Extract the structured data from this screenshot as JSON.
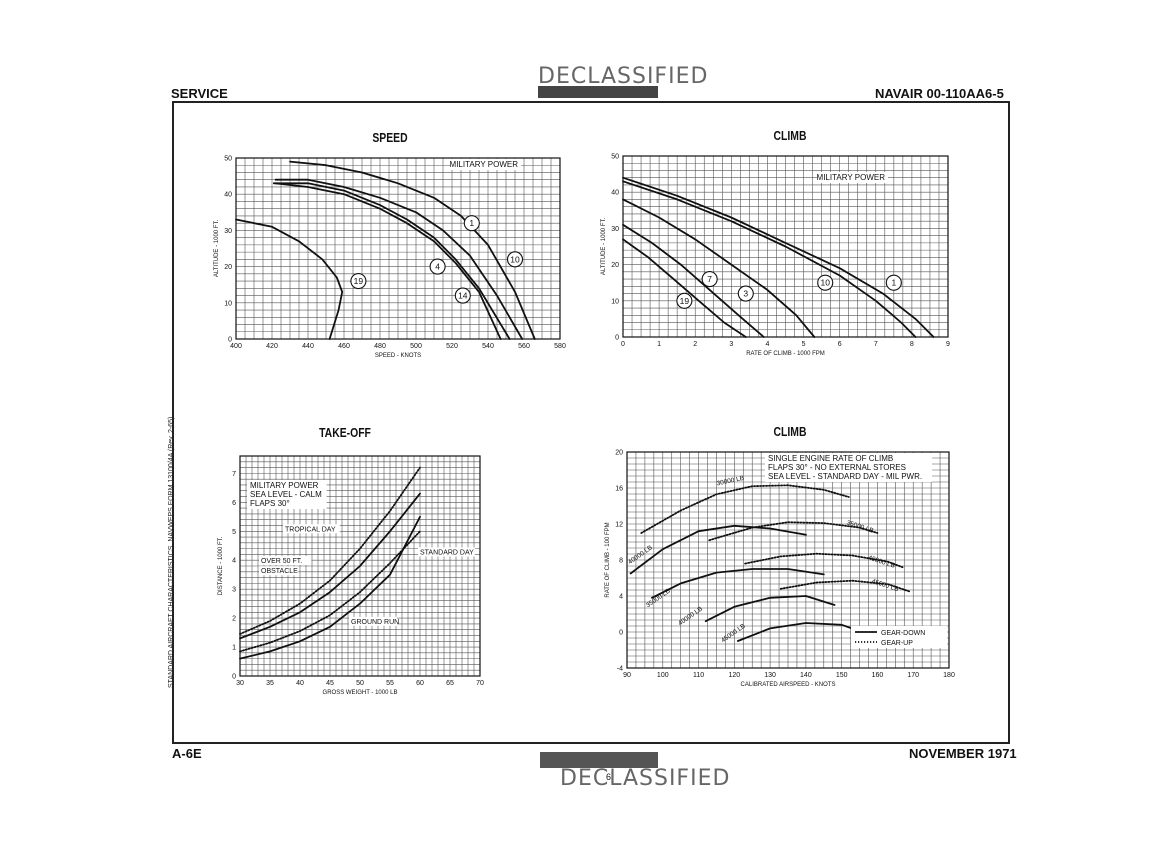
{
  "page": {
    "header_left": "SERVICE",
    "header_right": "NAVAIR 00-110AA6-5",
    "footer_left": "A-6E",
    "footer_right": "NOVEMBER 1971",
    "page_number": "6",
    "side_note": "STANDARD AIRCRAFT CHARACTERISTICS, NAVWEPS FORM 13100/4A (Rev. 2-65)",
    "stamp_top": "DECLASSIFIED",
    "stamp_bottom": "DECLASSIFIED"
  },
  "colors": {
    "ink": "#111111",
    "grid": "#555555",
    "paper": "#ffffff"
  },
  "chart_data": [
    {
      "id": "speed",
      "type": "line",
      "title": "SPEED",
      "xlabel": "SPEED - KNOTS",
      "ylabel": "ALTITUDE - 1000 FT.",
      "xlim": [
        400,
        580
      ],
      "ylim": [
        0,
        50
      ],
      "xticks": [
        "400",
        "420",
        "440",
        "460",
        "480",
        "500",
        "520",
        "540",
        "560",
        "580"
      ],
      "yticks": [
        "0",
        "10",
        "20",
        "30",
        "40",
        "50"
      ],
      "annotation": "MILITARY POWER",
      "grid": true,
      "series": [
        {
          "name": "1",
          "style": "solid",
          "x": [
            430,
            450,
            470,
            490,
            510,
            525,
            540,
            555,
            566
          ],
          "y": [
            49,
            48,
            46,
            43,
            39,
            34,
            26,
            13,
            0
          ]
        },
        {
          "name": "10",
          "style": "solid",
          "x": [
            422,
            440,
            460,
            480,
            500,
            515,
            530,
            545,
            559
          ],
          "y": [
            44,
            44,
            42,
            39,
            35,
            30,
            23,
            12,
            0
          ]
        },
        {
          "name": "4",
          "style": "solid",
          "x": [
            421,
            440,
            460,
            480,
            495,
            510,
            522,
            535,
            552
          ],
          "y": [
            43,
            43,
            41,
            37,
            33,
            28,
            22,
            14,
            0
          ]
        },
        {
          "name": "14",
          "style": "solid",
          "x": [
            422,
            440,
            460,
            480,
            495,
            510,
            522,
            535,
            547
          ],
          "y": [
            43,
            42,
            40,
            36,
            32,
            27,
            21,
            13,
            0
          ]
        },
        {
          "name": "19",
          "style": "solid",
          "x": [
            400,
            420,
            435,
            448,
            456,
            459,
            457,
            452
          ],
          "y": [
            33,
            31,
            27,
            22,
            17,
            13,
            8,
            0
          ]
        }
      ],
      "labels": [
        {
          "text": "1",
          "x": 531,
          "y": 32
        },
        {
          "text": "10",
          "x": 555,
          "y": 22
        },
        {
          "text": "4",
          "x": 512,
          "y": 20
        },
        {
          "text": "14",
          "x": 526,
          "y": 12
        },
        {
          "text": "19",
          "x": 468,
          "y": 16
        }
      ]
    },
    {
      "id": "climb_mil",
      "type": "line",
      "title": "CLIMB",
      "xlabel": "RATE OF CLIMB - 1000 FPM",
      "ylabel": "ALTITUDE - 1000 FT.",
      "xlim": [
        0,
        9
      ],
      "ylim": [
        0,
        50
      ],
      "xticks": [
        "0",
        "1",
        "2",
        "3",
        "4",
        "5",
        "6",
        "7",
        "8",
        "9"
      ],
      "yticks": [
        "0",
        "10",
        "20",
        "30",
        "40",
        "50"
      ],
      "annotation": "MILITARY POWER",
      "grid": true,
      "series": [
        {
          "name": "1",
          "style": "solid",
          "x": [
            0,
            1.5,
            3,
            4.5,
            6,
            7.2,
            8.1,
            8.6
          ],
          "y": [
            44,
            39,
            33,
            26,
            19,
            12,
            5,
            0
          ]
        },
        {
          "name": "10",
          "style": "solid",
          "x": [
            0,
            1.5,
            3,
            4.5,
            6,
            7.0,
            7.7,
            8.1
          ],
          "y": [
            43,
            38,
            32,
            25,
            17,
            10,
            4,
            0
          ]
        },
        {
          "name": "3",
          "style": "solid",
          "x": [
            0,
            1,
            2,
            3,
            4,
            4.8,
            5.3
          ],
          "y": [
            38,
            33,
            27,
            20,
            13,
            6,
            0
          ]
        },
        {
          "name": "7",
          "style": "solid",
          "x": [
            0,
            0.8,
            1.6,
            2.4,
            3.2,
            3.9
          ],
          "y": [
            31,
            26,
            20,
            13,
            6,
            0
          ]
        },
        {
          "name": "19",
          "style": "solid",
          "x": [
            0,
            0.7,
            1.4,
            2.1,
            2.8,
            3.4
          ],
          "y": [
            27,
            22,
            16,
            10,
            4,
            0
          ]
        }
      ],
      "labels": [
        {
          "text": "1",
          "x": 7.5,
          "y": 15
        },
        {
          "text": "10",
          "x": 5.6,
          "y": 15
        },
        {
          "text": "3",
          "x": 3.4,
          "y": 12
        },
        {
          "text": "7",
          "x": 2.4,
          "y": 16
        },
        {
          "text": "19",
          "x": 1.7,
          "y": 10
        }
      ]
    },
    {
      "id": "takeoff",
      "type": "line",
      "title": "TAKE-OFF",
      "xlabel": "GROSS WEIGHT - 1000 LB",
      "ylabel": "DISTANCE - 1000 FT.",
      "xlim": [
        30,
        70
      ],
      "ylim": [
        0,
        7.6
      ],
      "xticks": [
        "30",
        "35",
        "40",
        "45",
        "50",
        "55",
        "60",
        "65",
        "70"
      ],
      "yticks": [
        "0",
        "1",
        "2",
        "3",
        "4",
        "5",
        "6",
        "7"
      ],
      "annotation": "MILITARY POWER\nSEA LEVEL - CALM\nFLAPS 30°",
      "grid": true,
      "series": [
        {
          "name": "TROPICAL DAY",
          "style": "dotted",
          "x": [
            30,
            35,
            40,
            45,
            50,
            55,
            60
          ],
          "y": [
            1.45,
            1.9,
            2.5,
            3.3,
            4.4,
            5.7,
            7.2
          ]
        },
        {
          "name": "OVER 50 FT OBSTACLE",
          "style": "solid",
          "x": [
            30,
            35,
            40,
            45,
            50,
            55,
            60
          ],
          "y": [
            1.3,
            1.7,
            2.2,
            2.9,
            3.8,
            5.0,
            6.3
          ]
        },
        {
          "name": "STANDARD DAY",
          "style": "dotted",
          "x": [
            30,
            35,
            40,
            45,
            50,
            55,
            60
          ],
          "y": [
            0.85,
            1.15,
            1.55,
            2.1,
            2.9,
            3.9,
            5.0
          ]
        },
        {
          "name": "GROUND RUN",
          "style": "solid",
          "x": [
            30,
            35,
            40,
            45,
            50,
            55,
            60
          ],
          "y": [
            0.6,
            0.85,
            1.2,
            1.7,
            2.5,
            3.5,
            5.5
          ]
        }
      ],
      "labels": [
        {
          "text": "TROPICAL DAY",
          "x": 37.5,
          "y": 5.0
        },
        {
          "text": "STANDARD DAY",
          "x": 60,
          "y": 4.2
        },
        {
          "text": "OVER 50 FT.",
          "x": 33.5,
          "y": 3.9
        },
        {
          "text": "OBSTACLE",
          "x": 33.5,
          "y": 3.55
        },
        {
          "text": "GROUND RUN",
          "x": 48.5,
          "y": 1.8
        }
      ]
    },
    {
      "id": "climb_single",
      "type": "line",
      "title": "CLIMB",
      "xlabel": "CALIBRATED AIRSPEED - KNOTS",
      "ylabel": "RATE OF CLIMB - 100 FPM",
      "xlim": [
        90,
        180
      ],
      "ylim": [
        -4,
        20
      ],
      "xticks": [
        "90",
        "100",
        "110",
        "120",
        "130",
        "140",
        "150",
        "160",
        "170",
        "180"
      ],
      "yticks": [
        "-4",
        "0",
        "4",
        "8",
        "12",
        "16",
        "20"
      ],
      "annotation": "SINGLE ENGINE RATE OF CLIMB\nFLAPS 30° - NO EXTERNAL STORES\nSEA LEVEL - STANDARD DAY - MIL PWR.",
      "legend": [
        "GEAR-DOWN",
        "GEAR-UP"
      ],
      "grid": true,
      "series": [
        {
          "name": "30000 LB",
          "style": "dotted",
          "x": [
            94,
            105,
            115,
            125,
            135,
            145,
            152
          ],
          "y": [
            11,
            13.5,
            15.3,
            16.2,
            16.3,
            15.8,
            15.0
          ]
        },
        {
          "name": "30000 LB",
          "style": "solid",
          "x": [
            91,
            100,
            110,
            120,
            130,
            140
          ],
          "y": [
            6.5,
            9.2,
            11.2,
            11.8,
            11.5,
            10.8
          ]
        },
        {
          "name": "35000 LB",
          "style": "dotted",
          "x": [
            113,
            125,
            135,
            145,
            155,
            160
          ],
          "y": [
            10.2,
            11.6,
            12.2,
            12.1,
            11.6,
            11.0
          ]
        },
        {
          "name": "35000 LB",
          "style": "solid",
          "x": [
            97,
            105,
            115,
            125,
            135,
            145
          ],
          "y": [
            3.8,
            5.4,
            6.6,
            7.0,
            7.0,
            6.4
          ]
        },
        {
          "name": "40000 LB",
          "style": "dotted",
          "x": [
            123,
            133,
            143,
            153,
            163,
            167
          ],
          "y": [
            7.6,
            8.4,
            8.7,
            8.5,
            7.8,
            7.2
          ]
        },
        {
          "name": "40000 LB",
          "style": "solid",
          "x": [
            112,
            120,
            130,
            140,
            148
          ],
          "y": [
            1.2,
            2.8,
            3.8,
            4.0,
            3.0
          ]
        },
        {
          "name": "45000 LB",
          "style": "dotted",
          "x": [
            133,
            143,
            153,
            163,
            169
          ],
          "y": [
            4.8,
            5.5,
            5.7,
            5.3,
            4.5
          ]
        },
        {
          "name": "45000 LB",
          "style": "solid",
          "x": [
            121,
            130,
            140,
            150,
            155
          ],
          "y": [
            -1.0,
            0.4,
            1.0,
            0.8,
            0.1
          ]
        }
      ],
      "labels": [
        {
          "text": "30000 LB",
          "x": 119,
          "y": 16.6,
          "rot": -12
        },
        {
          "text": "35000 LB",
          "x": 155,
          "y": 11.5,
          "rot": 18
        },
        {
          "text": "40000 LB",
          "x": 161,
          "y": 7.6,
          "rot": 18
        },
        {
          "text": "45000 LB",
          "x": 162,
          "y": 5.0,
          "rot": 18
        },
        {
          "text": "40000 LB",
          "x": 94,
          "y": 8.4,
          "rot": -35
        },
        {
          "text": "35000 LB",
          "x": 99,
          "y": 3.6,
          "rot": -35
        },
        {
          "text": "40000 LB",
          "x": 108,
          "y": 1.6,
          "rot": -35
        },
        {
          "text": "45000 LB",
          "x": 120,
          "y": -0.3,
          "rot": -35
        }
      ]
    }
  ]
}
